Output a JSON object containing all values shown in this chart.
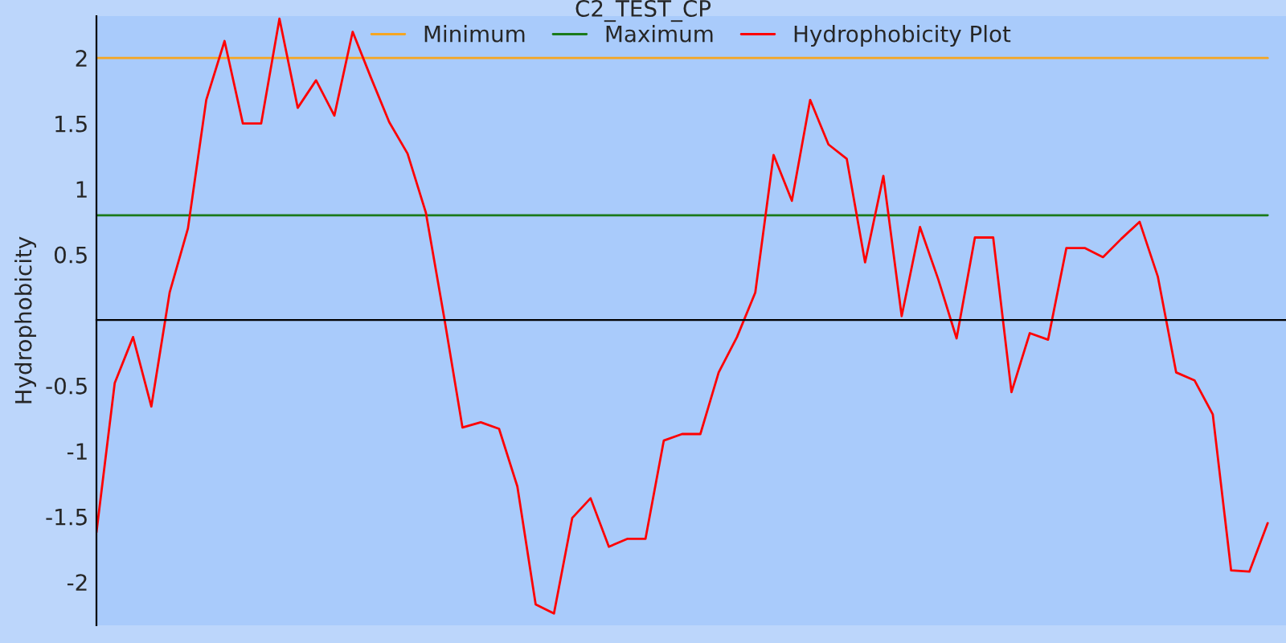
{
  "chart_data": {
    "type": "line",
    "title": "C2_TEST_CP",
    "ylabel": "Hydrophobicity",
    "categories": [
      null,
      null,
      null,
      null,
      null,
      null,
      null,
      null,
      null,
      null,
      null,
      null,
      null,
      null,
      null,
      null,
      null,
      null,
      null,
      null,
      null,
      null,
      null,
      null,
      null,
      null,
      null,
      null,
      null,
      null,
      null,
      null,
      null,
      null,
      null,
      null,
      null,
      null,
      null,
      null,
      null,
      null,
      null,
      null,
      null,
      null,
      null,
      null,
      null,
      null,
      null,
      null,
      null,
      null,
      null,
      null,
      null,
      null,
      null,
      null,
      null,
      null,
      null,
      null,
      null
    ],
    "series": [
      {
        "name": "Minimum",
        "color": "#f5a623",
        "values": [
          2,
          2,
          2,
          2,
          2,
          2,
          2,
          2,
          2,
          2,
          2,
          2,
          2,
          2,
          2,
          2,
          2,
          2,
          2,
          2,
          2,
          2,
          2,
          2,
          2,
          2,
          2,
          2,
          2,
          2,
          2,
          2,
          2,
          2,
          2,
          2,
          2,
          2,
          2,
          2,
          2,
          2,
          2,
          2,
          2,
          2,
          2,
          2,
          2,
          2,
          2,
          2,
          2,
          2,
          2,
          2,
          2,
          2,
          2,
          2,
          2,
          2,
          2,
          2,
          2
        ]
      },
      {
        "name": "Maximum",
        "color": "#1a7a1a",
        "values": [
          0.8,
          0.8,
          0.8,
          0.8,
          0.8,
          0.8,
          0.8,
          0.8,
          0.8,
          0.8,
          0.8,
          0.8,
          0.8,
          0.8,
          0.8,
          0.8,
          0.8,
          0.8,
          0.8,
          0.8,
          0.8,
          0.8,
          0.8,
          0.8,
          0.8,
          0.8,
          0.8,
          0.8,
          0.8,
          0.8,
          0.8,
          0.8,
          0.8,
          0.8,
          0.8,
          0.8,
          0.8,
          0.8,
          0.8,
          0.8,
          0.8,
          0.8,
          0.8,
          0.8,
          0.8,
          0.8,
          0.8,
          0.8,
          0.8,
          0.8,
          0.8,
          0.8,
          0.8,
          0.8,
          0.8,
          0.8,
          0.8,
          0.8,
          0.8,
          0.8,
          0.8,
          0.8,
          0.8,
          0.8,
          0.8
        ]
      },
      {
        "name": "Hydrophobicity Plot",
        "color": "#ff0000",
        "values": [
          -1.62,
          -0.48,
          -0.13,
          -0.66,
          0.21,
          0.7,
          1.68,
          2.13,
          1.5,
          1.5,
          2.3,
          1.62,
          1.83,
          1.56,
          2.2,
          1.85,
          1.51,
          1.27,
          0.82,
          0.02,
          -0.82,
          -0.78,
          -0.83,
          -1.27,
          -2.17,
          -2.24,
          -1.51,
          -1.36,
          -1.73,
          -1.67,
          -1.67,
          -0.92,
          -0.87,
          -0.87,
          -0.4,
          -0.13,
          0.21,
          1.26,
          0.91,
          1.68,
          1.34,
          1.23,
          0.44,
          1.1,
          0.03,
          0.71,
          0.31,
          -0.14,
          0.63,
          0.63,
          -0.55,
          -0.1,
          -0.15,
          0.55,
          0.55,
          0.48,
          0.62,
          0.75,
          0.33,
          -0.4,
          -0.46,
          -0.72,
          -1.91,
          -1.92,
          -1.55
        ]
      }
    ],
    "ylim": [
      -2.33,
      2.32
    ],
    "yticks": [
      -2,
      -1.5,
      -1,
      -0.5,
      0.5,
      1,
      1.5,
      2
    ],
    "legend": "top",
    "marker": "none",
    "line_style": "solid",
    "grid": false
  }
}
